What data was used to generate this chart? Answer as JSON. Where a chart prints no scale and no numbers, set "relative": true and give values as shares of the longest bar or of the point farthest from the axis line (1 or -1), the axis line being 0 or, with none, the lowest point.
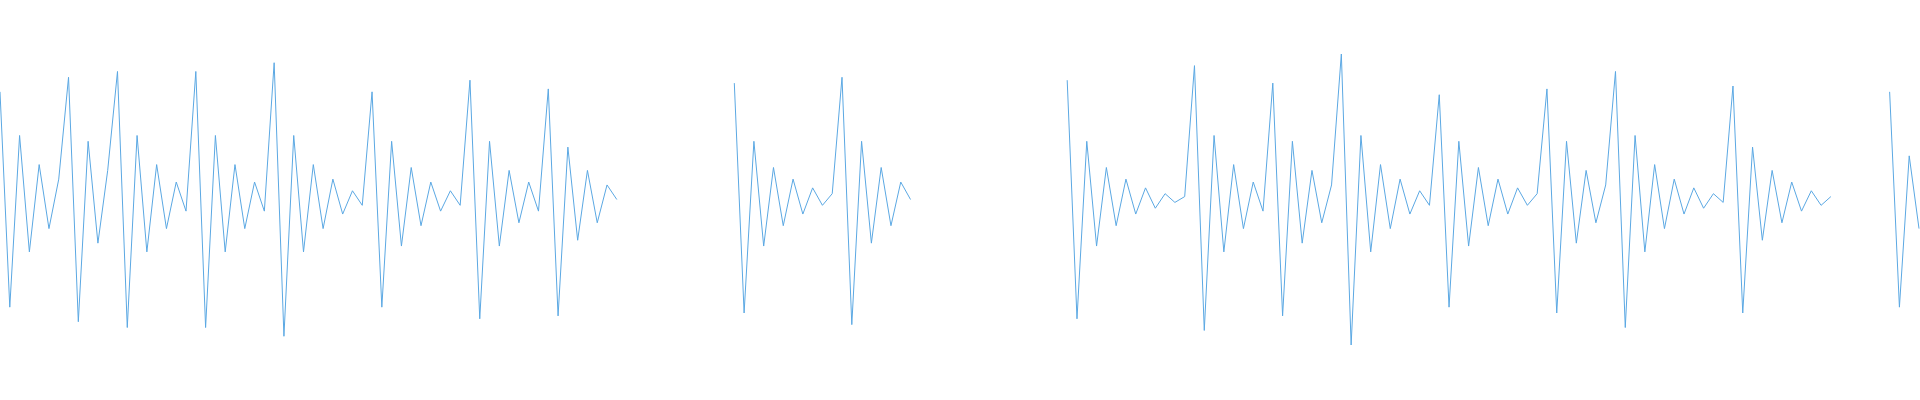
{
  "chart_data": {
    "type": "line",
    "relative": true,
    "categories": [
      null,
      null,
      null,
      null,
      null,
      null,
      null,
      null,
      null,
      null,
      null,
      null,
      null,
      null,
      null,
      null,
      null,
      null,
      null,
      null,
      null,
      null,
      null,
      null,
      null,
      null,
      null,
      null,
      null,
      null,
      null,
      null,
      null,
      null,
      null,
      null,
      null,
      null,
      null,
      null,
      null,
      null,
      null,
      null,
      null,
      null,
      null,
      null,
      null,
      null,
      null,
      null,
      null,
      null,
      null,
      null,
      null,
      null,
      null,
      null,
      null,
      null,
      null,
      null,
      null,
      null,
      null,
      null,
      null,
      null,
      null,
      null,
      null,
      null,
      null,
      null,
      null,
      null,
      null,
      null,
      null,
      null,
      null,
      null,
      null,
      null,
      null,
      null,
      null,
      null,
      null,
      null,
      null,
      null,
      null,
      null,
      null,
      null,
      null,
      null,
      null,
      null,
      null,
      null,
      null,
      null,
      null,
      null,
      null,
      null,
      null,
      null,
      null,
      null,
      null,
      null,
      null,
      null,
      null,
      null,
      null,
      null,
      null,
      null,
      null,
      null,
      null,
      null,
      null,
      null,
      null,
      null,
      null,
      null,
      null,
      null,
      null,
      null,
      null,
      null,
      null,
      null,
      null,
      null,
      null,
      null,
      null,
      null,
      null,
      null,
      null,
      null,
      null,
      null,
      null,
      null,
      null,
      null,
      null,
      null,
      null,
      null,
      null,
      null,
      null,
      null,
      null,
      null,
      null,
      null,
      null,
      null,
      null,
      null,
      null,
      null,
      null,
      null,
      null,
      null,
      null,
      null,
      null,
      null,
      null,
      null,
      null,
      null,
      null,
      null,
      null,
      null,
      null,
      null,
      null,
      null,
      null
    ],
    "series": [
      {
        "color": "#5ba8e3",
        "values": [
          0.87,
          0.13,
          0.72,
          0.32,
          0.62,
          0.4,
          0.57,
          0.92,
          0.08,
          0.7,
          0.35,
          0.6,
          0.94,
          0.06,
          0.72,
          0.32,
          0.62,
          0.4,
          0.56,
          0.46,
          0.94,
          0.06,
          0.72,
          0.32,
          0.62,
          0.4,
          0.56,
          0.46,
          0.97,
          0.03,
          0.72,
          0.32,
          0.62,
          0.4,
          0.57,
          0.45,
          0.53,
          0.48,
          0.87,
          0.13,
          0.7,
          0.34,
          0.61,
          0.41,
          0.56,
          0.46,
          0.53,
          0.48,
          0.91,
          0.09,
          0.7,
          0.34,
          0.6,
          0.42,
          0.56,
          0.46,
          0.88,
          0.1,
          0.68,
          0.36,
          0.6,
          0.42,
          0.55,
          0.5,
          null,
          null,
          null,
          null,
          null,
          null,
          null,
          null,
          null,
          null,
          null,
          null,
          null,
          null,
          null,
          null,
          null,
          null,
          null,
          null,
          null,
          null,
          null,
          null,
          null,
          null,
          null,
          null,
          null,
          null,
          null,
          null,
          null,
          null,
          null,
          null,
          null,
          null,
          null,
          null,
          null,
          null,
          null,
          null,
          null,
          null,
          null,
          null,
          null,
          null,
          null,
          null,
          null,
          null,
          null,
          null,
          null,
          null,
          null,
          null,
          null,
          null,
          null,
          null,
          null,
          null,
          null,
          null,
          null,
          null,
          null,
          null,
          null,
          null,
          null,
          null,
          null,
          null,
          null,
          null,
          null,
          null,
          null,
          null,
          null,
          null,
          null,
          null,
          null,
          null,
          null,
          null,
          null,
          null,
          null,
          null,
          null,
          null,
          null,
          null,
          null,
          null,
          null,
          null,
          null,
          null,
          null,
          null,
          null,
          null,
          null,
          null,
          null,
          null,
          null,
          null,
          null,
          null,
          null,
          null,
          null,
          null,
          null,
          null,
          null,
          null,
          null,
          null,
          null,
          null,
          null,
          null,
          null
        ]
      },
      {
        "color": "#5ba8e3",
        "values": [
          null,
          null,
          null,
          null,
          null,
          null,
          null,
          null,
          null,
          null,
          null,
          null,
          null,
          null,
          null,
          null,
          null,
          null,
          null,
          null,
          null,
          null,
          null,
          null,
          null,
          null,
          null,
          null,
          null,
          null,
          null,
          null,
          null,
          null,
          null,
          null,
          null,
          null,
          null,
          null,
          null,
          null,
          null,
          null,
          null,
          null,
          null,
          null,
          null,
          null,
          null,
          null,
          null,
          null,
          null,
          null,
          null,
          null,
          null,
          null,
          null,
          null,
          null,
          null,
          null,
          null,
          null,
          null,
          null,
          null,
          null,
          null,
          null,
          null,
          null,
          0.9,
          0.11,
          0.7,
          0.34,
          0.61,
          0.41,
          0.57,
          0.45,
          0.54,
          0.48,
          0.52,
          0.92,
          0.07,
          0.7,
          0.35,
          0.61,
          0.41,
          0.56,
          0.5,
          null,
          null,
          null,
          null,
          null,
          null,
          null,
          null,
          null,
          null,
          null,
          null,
          null,
          null,
          null,
          null,
          null,
          null,
          null,
          null,
          null,
          null,
          null,
          null,
          null,
          null,
          null,
          null,
          null,
          null,
          null,
          null,
          null,
          null,
          null,
          null,
          null,
          null,
          null,
          null,
          null,
          null,
          null,
          null,
          null,
          null,
          null,
          null,
          null,
          null,
          null,
          null,
          null,
          null,
          null,
          null,
          null,
          null,
          null,
          null,
          null,
          null,
          null,
          null,
          null,
          null,
          null,
          null,
          null,
          null,
          null,
          null,
          null,
          null,
          null,
          null,
          null,
          null,
          null,
          null,
          null,
          null,
          null,
          null,
          null,
          null,
          null,
          null,
          null,
          null,
          null,
          null,
          null,
          null,
          null,
          null,
          null,
          null,
          null,
          null,
          null,
          null,
          null
        ]
      },
      {
        "color": "#5ba8e3",
        "values": [
          null,
          null,
          null,
          null,
          null,
          null,
          null,
          null,
          null,
          null,
          null,
          null,
          null,
          null,
          null,
          null,
          null,
          null,
          null,
          null,
          null,
          null,
          null,
          null,
          null,
          null,
          null,
          null,
          null,
          null,
          null,
          null,
          null,
          null,
          null,
          null,
          null,
          null,
          null,
          null,
          null,
          null,
          null,
          null,
          null,
          null,
          null,
          null,
          null,
          null,
          null,
          null,
          null,
          null,
          null,
          null,
          null,
          null,
          null,
          null,
          null,
          null,
          null,
          null,
          null,
          null,
          null,
          null,
          null,
          null,
          null,
          null,
          null,
          null,
          null,
          null,
          null,
          null,
          null,
          null,
          null,
          null,
          null,
          null,
          null,
          null,
          null,
          null,
          null,
          null,
          null,
          null,
          null,
          null,
          null,
          null,
          null,
          null,
          null,
          null,
          null,
          null,
          null,
          null,
          null,
          null,
          null,
          null,
          null,
          0.91,
          0.09,
          0.7,
          0.34,
          0.61,
          0.41,
          0.57,
          0.45,
          0.54,
          0.47,
          0.52,
          0.49,
          0.51,
          0.96,
          0.05,
          0.72,
          0.32,
          0.62,
          0.4,
          0.56,
          0.46,
          0.9,
          0.1,
          0.7,
          0.35,
          0.6,
          0.42,
          0.55,
          1,
          0,
          0.72,
          0.32,
          0.62,
          0.4,
          0.57,
          0.45,
          0.53,
          0.48,
          0.86,
          0.13,
          0.7,
          0.34,
          0.61,
          0.41,
          0.57,
          0.45,
          0.54,
          0.48,
          0.52,
          0.88,
          0.11,
          0.7,
          0.35,
          0.6,
          0.42,
          0.55,
          0.94,
          0.06,
          0.72,
          0.32,
          0.62,
          0.4,
          0.57,
          0.45,
          0.54,
          0.47,
          0.52,
          0.49,
          0.89,
          0.11,
          0.68,
          0.36,
          0.6,
          0.42,
          0.56,
          0.46,
          0.53,
          0.48,
          0.51,
          null,
          null,
          null,
          null,
          null,
          null,
          null,
          null,
          null
        ]
      },
      {
        "color": "#5ba8e3",
        "values": [
          null,
          null,
          null,
          null,
          null,
          null,
          null,
          null,
          null,
          null,
          null,
          null,
          null,
          null,
          null,
          null,
          null,
          null,
          null,
          null,
          null,
          null,
          null,
          null,
          null,
          null,
          null,
          null,
          null,
          null,
          null,
          null,
          null,
          null,
          null,
          null,
          null,
          null,
          null,
          null,
          null,
          null,
          null,
          null,
          null,
          null,
          null,
          null,
          null,
          null,
          null,
          null,
          null,
          null,
          null,
          null,
          null,
          null,
          null,
          null,
          null,
          null,
          null,
          null,
          null,
          null,
          null,
          null,
          null,
          null,
          null,
          null,
          null,
          null,
          null,
          null,
          null,
          null,
          null,
          null,
          null,
          null,
          null,
          null,
          null,
          null,
          null,
          null,
          null,
          null,
          null,
          null,
          null,
          null,
          null,
          null,
          null,
          null,
          null,
          null,
          null,
          null,
          null,
          null,
          null,
          null,
          null,
          null,
          null,
          null,
          null,
          null,
          null,
          null,
          null,
          null,
          null,
          null,
          null,
          null,
          null,
          null,
          null,
          null,
          null,
          null,
          null,
          null,
          null,
          null,
          null,
          null,
          null,
          null,
          null,
          null,
          null,
          null,
          null,
          null,
          null,
          null,
          null,
          null,
          null,
          null,
          null,
          null,
          null,
          null,
          null,
          null,
          null,
          null,
          null,
          null,
          null,
          null,
          null,
          null,
          null,
          null,
          null,
          null,
          null,
          null,
          null,
          null,
          null,
          null,
          null,
          null,
          null,
          null,
          null,
          null,
          null,
          null,
          null,
          null,
          null,
          null,
          null,
          null,
          null,
          null,
          null,
          null,
          null,
          null,
          null,
          null,
          null,
          0.87,
          0.13,
          0.65,
          0.4
        ]
      }
    ]
  }
}
